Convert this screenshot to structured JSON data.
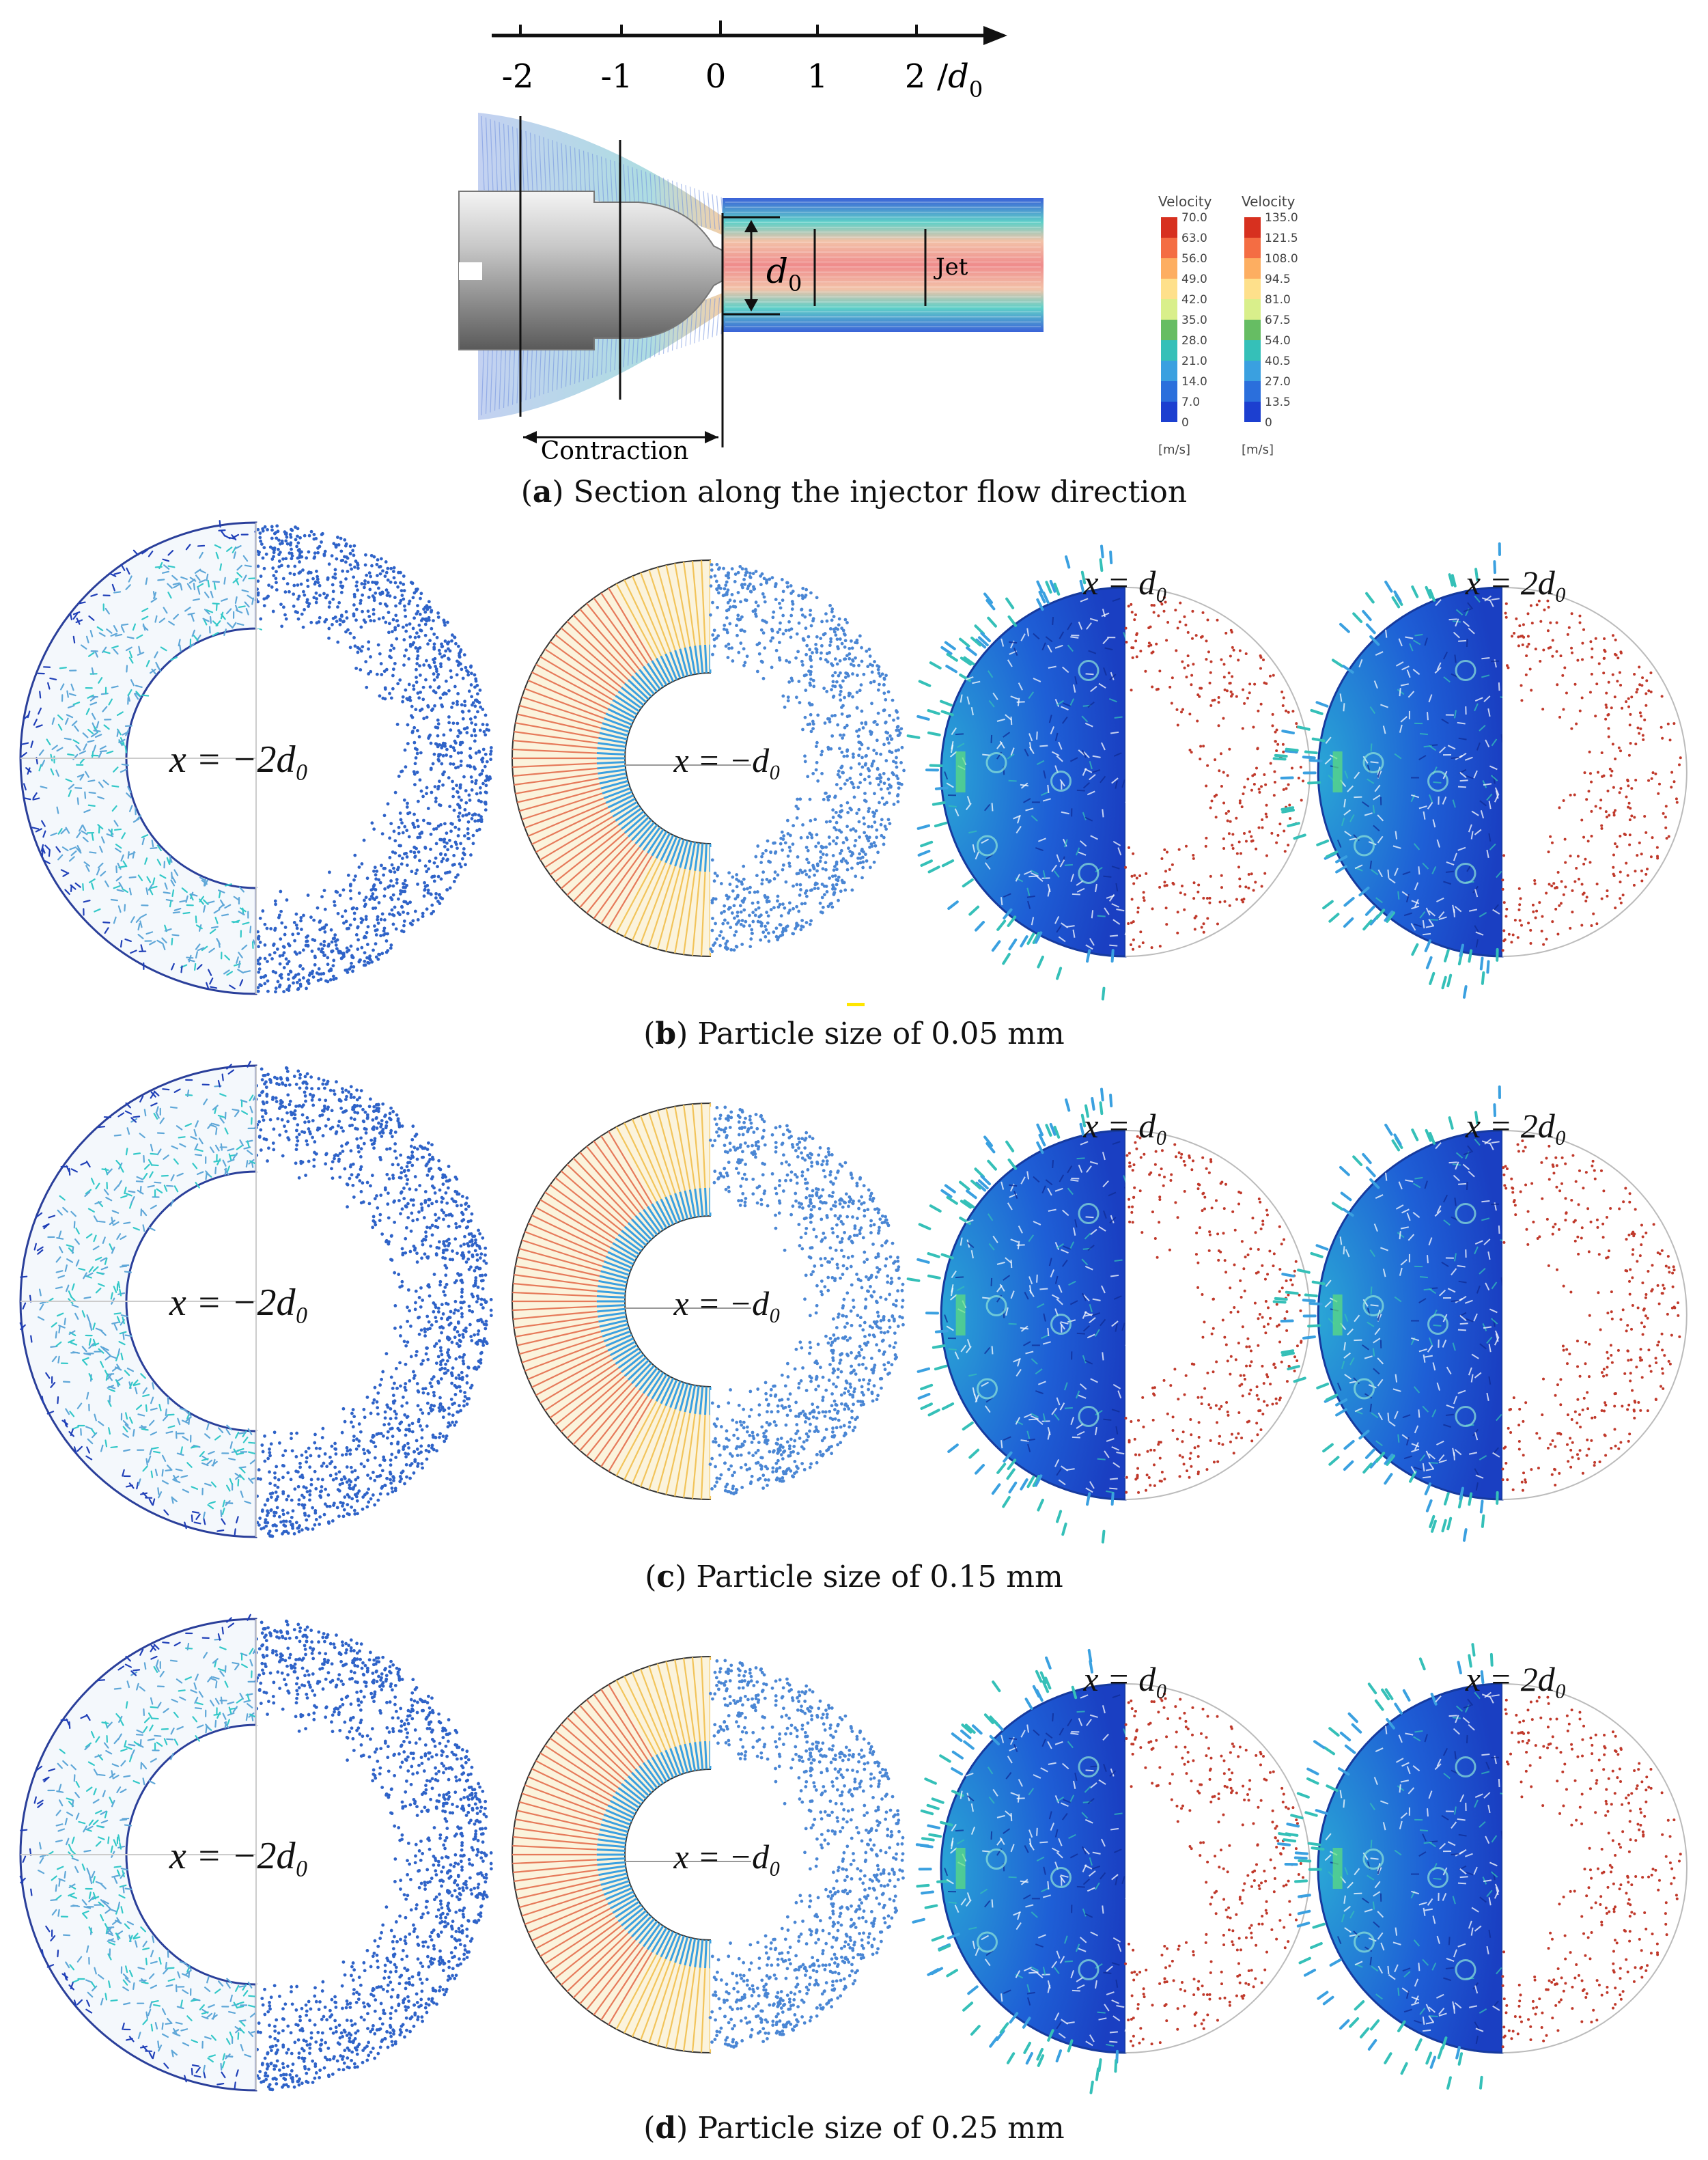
{
  "panel_a": {
    "axis_ticks": [
      "-2",
      "-1",
      "0",
      "1",
      "2"
    ],
    "axis_unit_symbol": "/",
    "d0_letter": "d",
    "d0_subscript": "0",
    "jet_label": "Jet",
    "contraction_label": "Contraction",
    "legend_1": {
      "title": "Velocity",
      "values": [
        "70.0",
        "63.0",
        "56.0",
        "49.0",
        "42.0",
        "35.0",
        "28.0",
        "21.0",
        "14.0",
        "7.0",
        "0"
      ],
      "unit": "[m/s]"
    },
    "legend_2": {
      "title": "Velocity",
      "values": [
        "135.0",
        "121.5",
        "108.0",
        "94.5",
        "81.0",
        "67.5",
        "54.0",
        "40.5",
        "27.0",
        "13.5",
        "0"
      ],
      "unit": "[m/s]"
    },
    "colormap": [
      "#d7301f",
      "#f46d43",
      "#fdae61",
      "#fee08b",
      "#d9ef8b",
      "#66bd63",
      "#35c0b8",
      "#3aa0e0",
      "#2b6fdc",
      "#1c3fd0"
    ],
    "caption_letter": "a",
    "caption_text": "Section along the injector flow direction"
  },
  "rows": [
    {
      "caption_letter": "b",
      "caption_text": "Particle size of 0.05 mm",
      "labels": [
        "x = −2d₀",
        "x = −d₀",
        "x = d₀",
        "x = 2d₀"
      ]
    },
    {
      "caption_letter": "c",
      "caption_text": "Particle size of 0.15 mm",
      "labels": [
        "x = −2d₀",
        "x = −d₀",
        "x = d₀",
        "x = 2d₀"
      ]
    },
    {
      "caption_letter": "d",
      "caption_text": "Particle size of 0.25 mm",
      "labels": [
        "x = −2d₀",
        "x = −d₀",
        "x = d₀",
        "x = 2d₀"
      ]
    }
  ],
  "colors": {
    "particle_blue": "#2f63c8",
    "particle_red": "#c0392b",
    "vector_dark": "#1f3fb8",
    "vector_cyan": "#33c8c8"
  }
}
